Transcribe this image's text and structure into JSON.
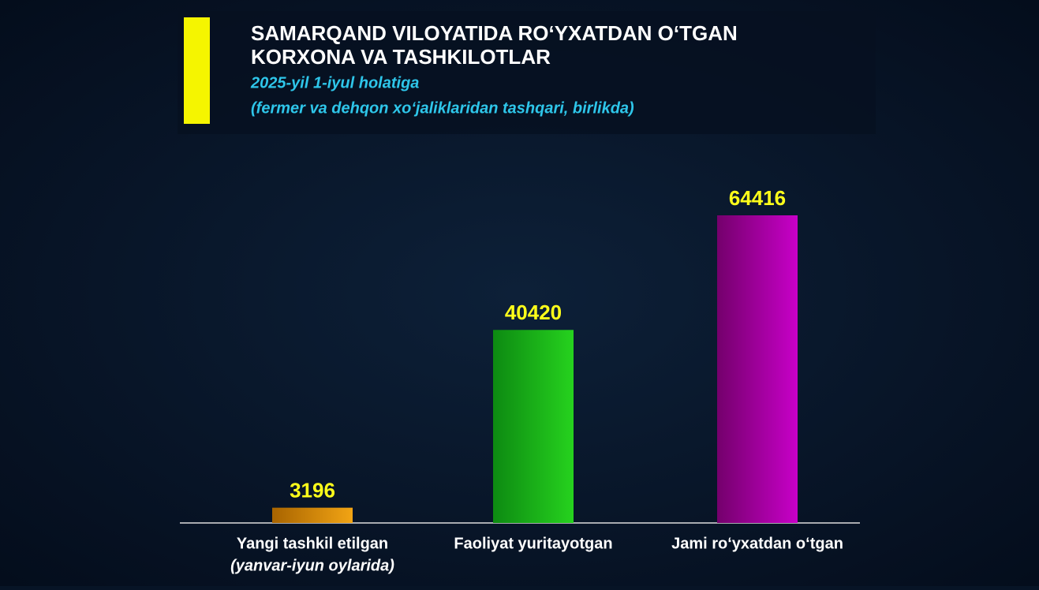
{
  "chart_data": {
    "type": "bar",
    "title": [
      "SAMARQAND VILOYATIDA RO‘YXATDAN O‘TGAN",
      "KORXONA VA TASHKILOTLAR"
    ],
    "subtitle": [
      "2025-yil 1-iyul holatiga",
      "(fermer va dehqon xo‘jaliklaridan tashqari, birlikda)"
    ],
    "categories": [
      "Yangi tashkil etilgan",
      "Faoliyat yuritayotgan",
      "Jami ro‘yxatdan o‘tgan"
    ],
    "category_notes": [
      "(yanvar-iyun oylarida)",
      null,
      null
    ],
    "values": [
      3196,
      40420,
      64416
    ],
    "colors": [
      [
        "#a86400",
        "#f2a414"
      ],
      [
        "#0d8a12",
        "#26d21e"
      ],
      [
        "#74006c",
        "#c800c8"
      ]
    ]
  }
}
